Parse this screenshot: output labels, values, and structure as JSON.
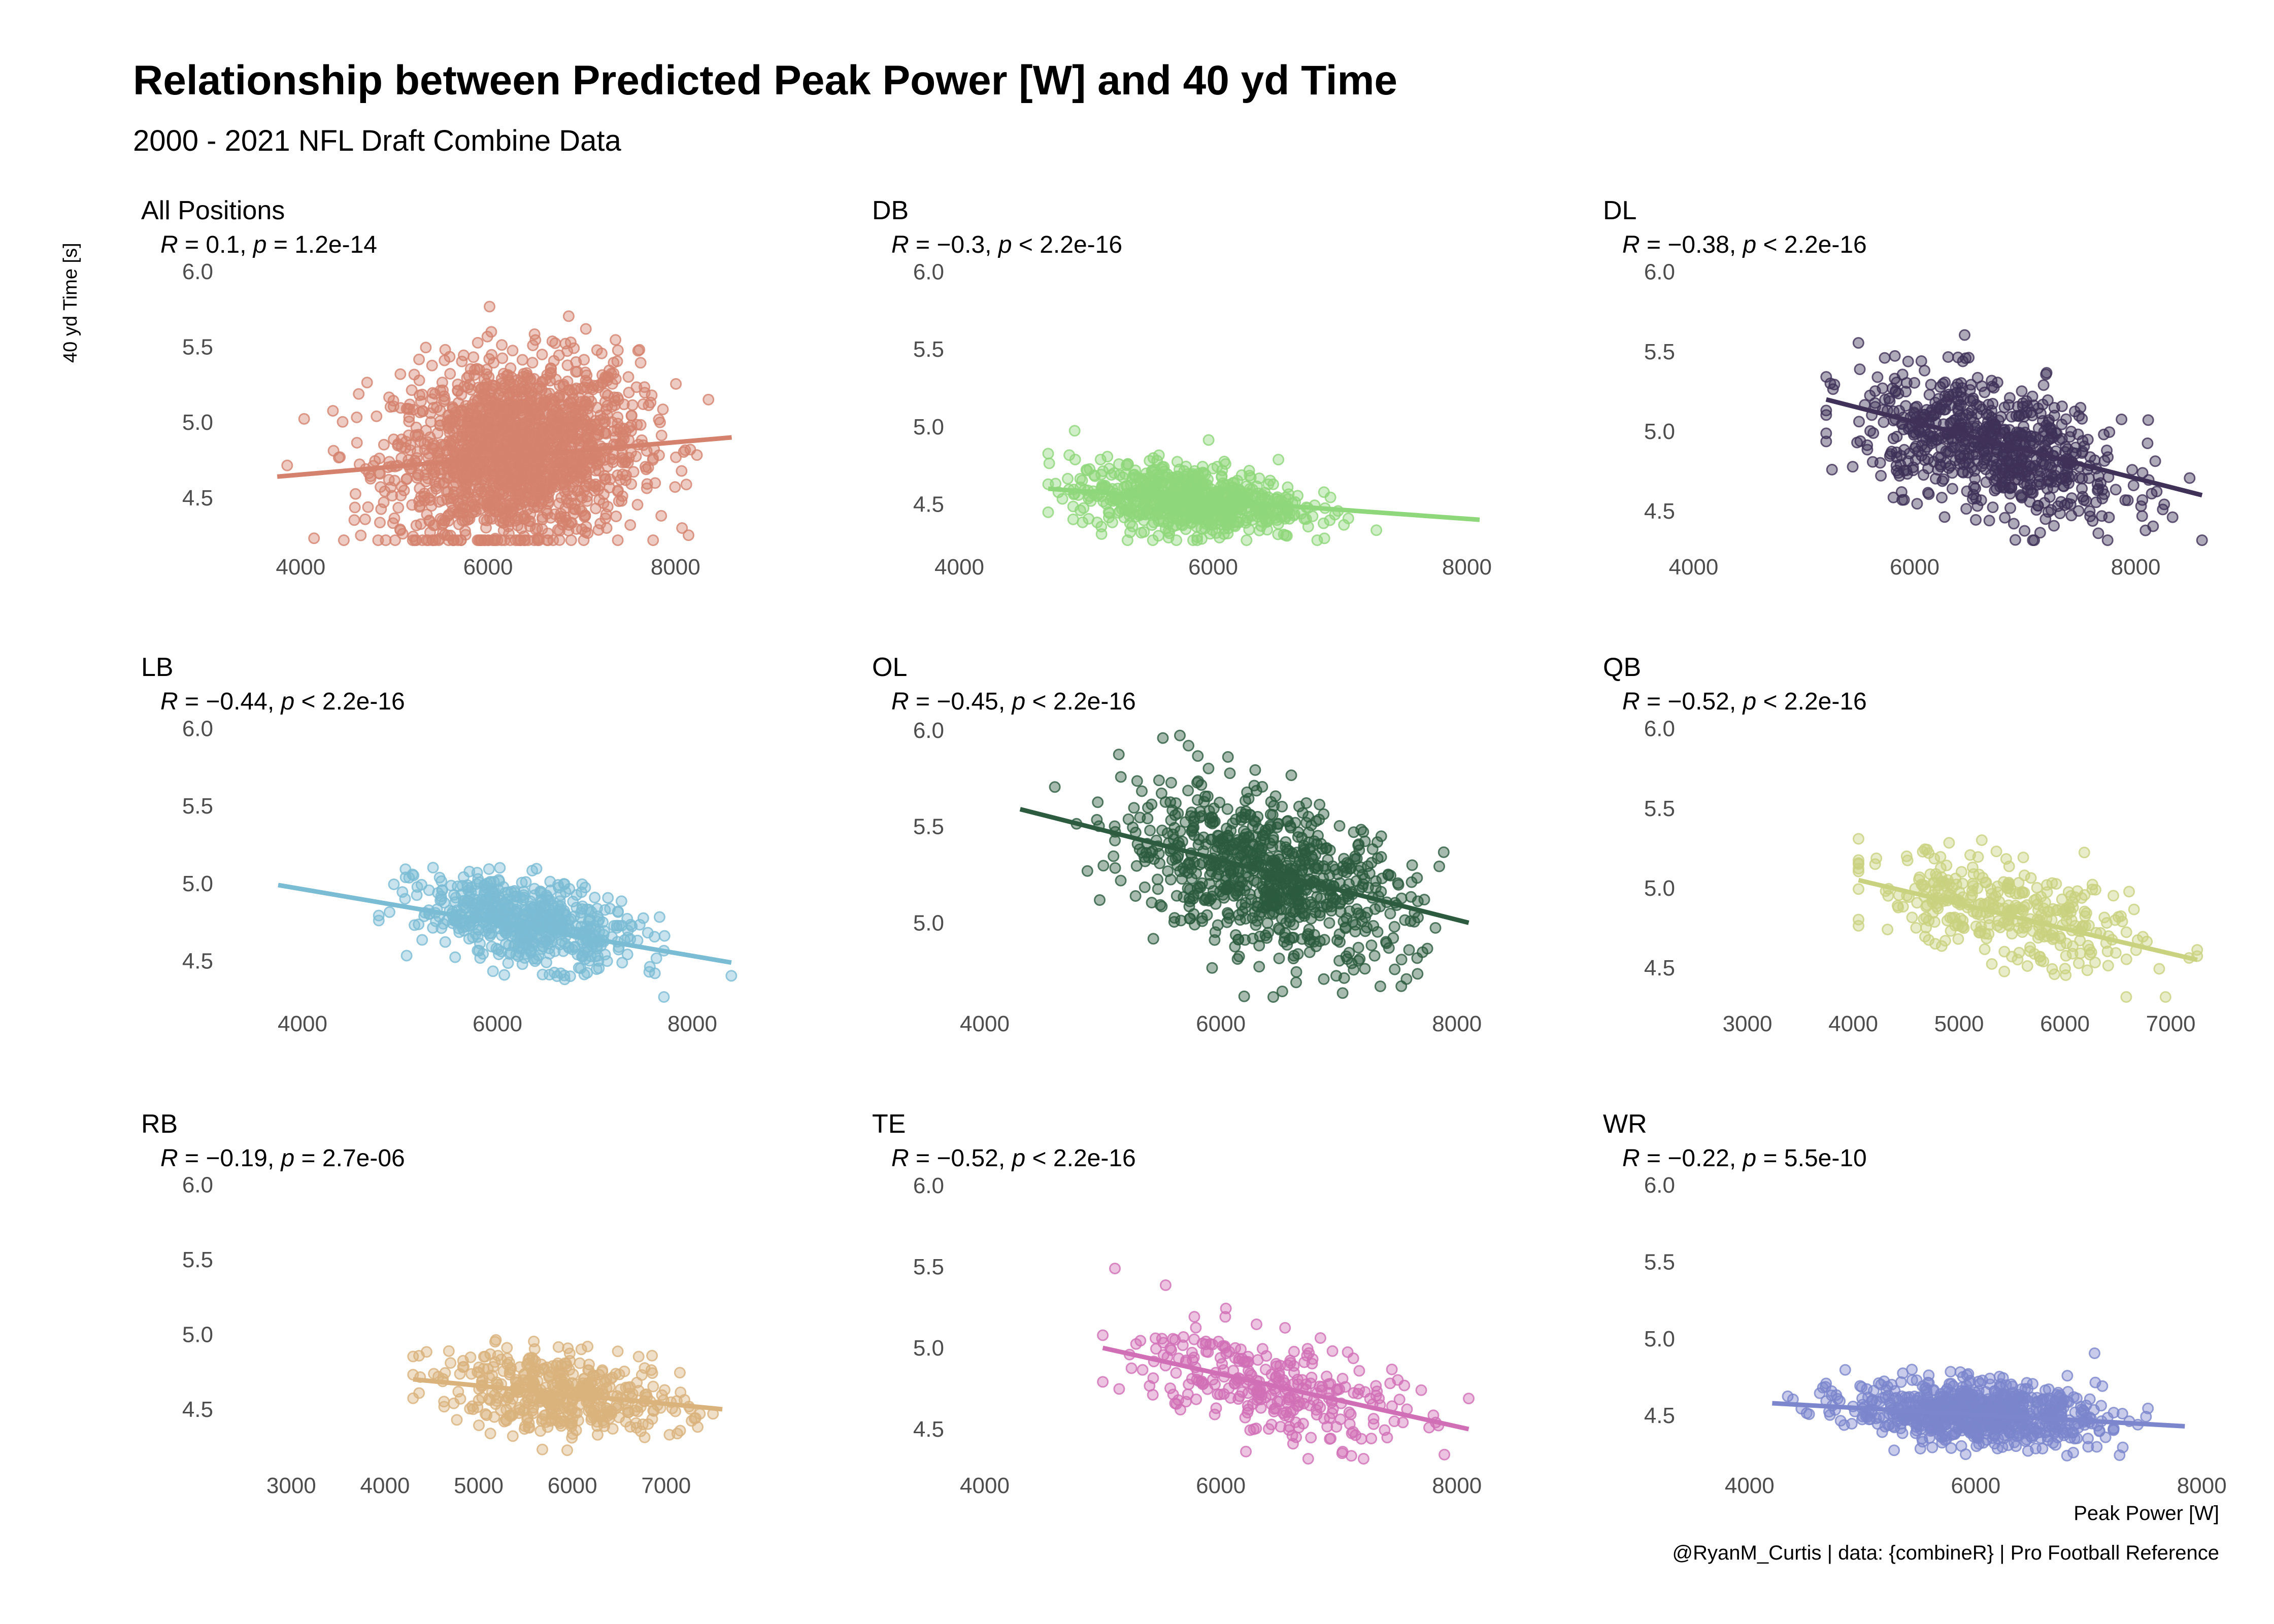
{
  "title": "Relationship between Predicted Peak Power [W] and 40 yd Time",
  "subtitle": "2000 - 2021 NFL Draft Combine Data",
  "caption": "@RyanM_Curtis | data: {combineR} | Pro Football Reference",
  "xlabel": "Peak Power [W]",
  "ylabel": "40 yd Time [s]",
  "chart_data": [
    {
      "type": "scatter",
      "panel": "All Positions",
      "stat_r": "0.1",
      "stat_p": "= 1.2e-14",
      "color": "#D4826E",
      "xlim": [
        3500,
        8700
      ],
      "ylim": [
        4.2,
        6.05
      ],
      "xticks": [
        4000,
        6000,
        8000
      ],
      "yticks": [
        4.5,
        5.0,
        5.5,
        6.0
      ],
      "x_center": 6300,
      "x_sd": 650,
      "y_center": 4.8,
      "y_sd": 0.3,
      "slope": 5.45e-05,
      "n_points": 1800,
      "fit": {
        "x": [
          3750,
          8600
        ],
        "y": [
          4.64,
          4.9
        ]
      }
    },
    {
      "type": "scatter",
      "panel": "DB",
      "stat_r": "−0.3",
      "stat_p": "< 2.2e-16",
      "color": "#8ED77A",
      "xlim": [
        4200,
        8200
      ],
      "ylim": [
        4.25,
        6.05
      ],
      "xticks": [
        4000,
        6000,
        8000
      ],
      "yticks": [
        4.5,
        5.0,
        5.5,
        6.0
      ],
      "x_center": 5800,
      "x_sd": 450,
      "y_center": 4.53,
      "y_sd": 0.11,
      "slope": -5.88e-05,
      "n_points": 700,
      "fit": {
        "x": [
          4700,
          8100
        ],
        "y": [
          4.6,
          4.4
        ]
      }
    },
    {
      "type": "scatter",
      "panel": "DL",
      "stat_r": "−0.38",
      "stat_p": "< 2.2e-16",
      "color": "#3F3157",
      "xlim": [
        4200,
        8700
      ],
      "ylim": [
        4.3,
        6.05
      ],
      "xticks": [
        4000,
        6000,
        8000
      ],
      "yticks": [
        4.5,
        5.0,
        5.5,
        6.0
      ],
      "x_center": 6700,
      "x_sd": 600,
      "y_center": 4.9,
      "y_sd": 0.2,
      "slope": -0.000176,
      "n_points": 700,
      "fit": {
        "x": [
          5200,
          8600
        ],
        "y": [
          5.2,
          4.6
        ]
      }
    },
    {
      "type": "scatter",
      "panel": "LB",
      "stat_r": "−0.44",
      "stat_p": "< 2.2e-16",
      "color": "#7BBCD5",
      "xlim": [
        3500,
        8500
      ],
      "ylim": [
        4.25,
        6.05
      ],
      "xticks": [
        4000,
        6000,
        8000
      ],
      "yticks": [
        4.5,
        5.0,
        5.5,
        6.0
      ],
      "x_center": 6300,
      "x_sd": 550,
      "y_center": 4.75,
      "y_sd": 0.13,
      "slope": -0.000108,
      "n_points": 600,
      "fit": {
        "x": [
          3750,
          8400
        ],
        "y": [
          4.99,
          4.49
        ]
      }
    },
    {
      "type": "scatter",
      "panel": "OL",
      "stat_r": "−0.45",
      "stat_p": "< 2.2e-16",
      "color": "#2C5B3F",
      "xlim": [
        4000,
        8300
      ],
      "ylim": [
        4.6,
        6.05
      ],
      "xticks": [
        4000,
        6000,
        8000
      ],
      "yticks": [
        5.0,
        5.5,
        6.0
      ],
      "x_center": 6400,
      "x_sd": 600,
      "y_center": 5.25,
      "y_sd": 0.2,
      "slope": -0.000155,
      "n_points": 800,
      "fit": {
        "x": [
          4300,
          8100
        ],
        "y": [
          5.59,
          5.0
        ]
      }
    },
    {
      "type": "scatter",
      "panel": "QB",
      "stat_r": "−0.52",
      "stat_p": "< 2.2e-16",
      "color": "#C9D27F",
      "xlim": [
        2700,
        7400
      ],
      "ylim": [
        4.3,
        6.05
      ],
      "xticks": [
        3000,
        4000,
        5000,
        6000,
        7000
      ],
      "yticks": [
        4.5,
        5.0,
        5.5,
        6.0
      ],
      "x_center": 5400,
      "x_sd": 650,
      "y_center": 4.85,
      "y_sd": 0.15,
      "slope": -0.000156,
      "n_points": 350,
      "fit": {
        "x": [
          4050,
          7250
        ],
        "y": [
          5.05,
          4.55
        ]
      }
    },
    {
      "type": "scatter",
      "panel": "RB",
      "stat_r": "−0.19",
      "stat_p": "= 2.7e-06",
      "color": "#D9B27C",
      "xlim": [
        2600,
        7800
      ],
      "ylim": [
        4.15,
        6.05
      ],
      "xticks": [
        3000,
        4000,
        5000,
        6000,
        7000
      ],
      "yticks": [
        4.5,
        5.0,
        5.5,
        6.0
      ],
      "x_center": 5900,
      "x_sd": 650,
      "y_center": 4.6,
      "y_sd": 0.13,
      "slope": -6.06e-05,
      "n_points": 450,
      "fit": {
        "x": [
          4300,
          7600
        ],
        "y": [
          4.7,
          4.5
        ]
      }
    },
    {
      "type": "scatter",
      "panel": "TE",
      "stat_r": "−0.52",
      "stat_p": "< 2.2e-16",
      "color": "#D16FB6",
      "xlim": [
        4000,
        8300
      ],
      "ylim": [
        4.3,
        6.05
      ],
      "xticks": [
        4000,
        6000,
        8000
      ],
      "yticks": [
        4.5,
        5.0,
        5.5,
        6.0
      ],
      "x_center": 6400,
      "x_sd": 550,
      "y_center": 4.77,
      "y_sd": 0.16,
      "slope": -0.000161,
      "n_points": 300,
      "fit": {
        "x": [
          5000,
          8100
        ],
        "y": [
          5.0,
          4.5
        ]
      }
    },
    {
      "type": "scatter",
      "panel": "WR",
      "stat_r": "−0.22",
      "stat_p": "= 5.5e-10",
      "color": "#7B86CC",
      "xlim": [
        3700,
        8100
      ],
      "ylim": [
        4.2,
        6.05
      ],
      "xticks": [
        4000,
        6000,
        8000
      ],
      "yticks": [
        4.5,
        5.0,
        5.5,
        6.0
      ],
      "x_center": 6000,
      "x_sd": 550,
      "y_center": 4.52,
      "y_sd": 0.1,
      "slope": -4.11e-05,
      "n_points": 800,
      "fit": {
        "x": [
          4200,
          7850
        ],
        "y": [
          4.58,
          4.43
        ]
      }
    }
  ]
}
